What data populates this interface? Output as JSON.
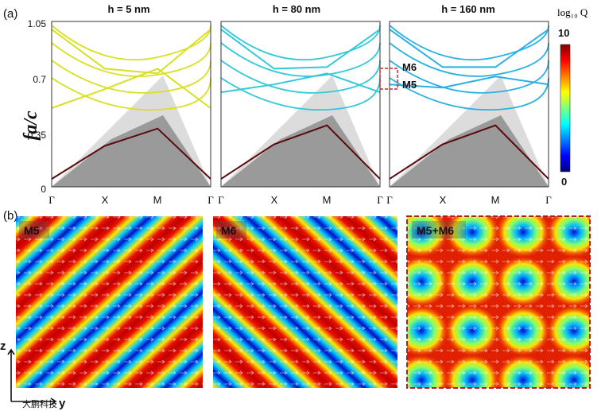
{
  "figure": {
    "panel_a_label": "(a)",
    "panel_b_label": "(b)",
    "ylabel": "fa/c",
    "yticks": [
      "0",
      "0.35",
      "0.7",
      "1.05"
    ],
    "xticks": [
      "Γ",
      "X",
      "M",
      "Γ"
    ],
    "ylim": [
      0,
      1.05
    ],
    "colorbar": {
      "label": "log₁₀ Q",
      "max_label": "10",
      "min_label": "0",
      "colormap": "jet"
    },
    "band_panels": [
      {
        "title": "h = 5 nm",
        "band_color": "#d9e021"
      },
      {
        "title": "h = 80 nm",
        "band_color": "#33c9d8"
      },
      {
        "title": "h = 160 nm",
        "band_color": "#2bb0e6"
      }
    ],
    "mode_annotations": [
      "M6",
      "M5"
    ],
    "field_panels": [
      {
        "label": "M5",
        "pattern": "diagonal-down"
      },
      {
        "label": "M6",
        "pattern": "diagonal-up"
      },
      {
        "label": "M5+M6",
        "pattern": "checkerboard"
      }
    ],
    "axes_labels": {
      "vertical": "z",
      "horizontal": "y"
    },
    "watermark": "大鹏科技"
  },
  "chart_data": [
    {
      "type": "line",
      "title": "h = 5 nm",
      "x": [
        "Γ",
        "X",
        "M",
        "Γ"
      ],
      "ylabel": "fa/c",
      "ylim": [
        0,
        1.05
      ],
      "series": [
        {
          "values": [
            0.05,
            0.26,
            0.37,
            0.05
          ]
        },
        {
          "values": [
            0.5,
            0.62,
            0.75,
            0.5
          ]
        },
        {
          "values": [
            1.0,
            0.75,
            0.72,
            1.0
          ]
        }
      ]
    },
    {
      "type": "line",
      "title": "h = 80 nm",
      "x": [
        "Γ",
        "X",
        "M",
        "Γ"
      ],
      "ylabel": "fa/c",
      "ylim": [
        0,
        1.05
      ],
      "series": [
        {
          "values": [
            0.05,
            0.27,
            0.39,
            0.05
          ]
        },
        {
          "values": [
            0.6,
            0.65,
            0.72,
            0.6
          ]
        },
        {
          "values": [
            1.0,
            0.75,
            0.76,
            1.0
          ]
        }
      ]
    },
    {
      "type": "line",
      "title": "h = 160 nm",
      "x": [
        "Γ",
        "X",
        "M",
        "Γ"
      ],
      "ylabel": "fa/c",
      "ylim": [
        0,
        1.05
      ],
      "series": [
        {
          "values": [
            0.05,
            0.27,
            0.39,
            0.05
          ]
        },
        {
          "values": [
            0.65,
            0.63,
            0.7,
            0.65
          ]
        },
        {
          "values": [
            1.0,
            0.76,
            0.76,
            1.0
          ]
        }
      ]
    }
  ]
}
